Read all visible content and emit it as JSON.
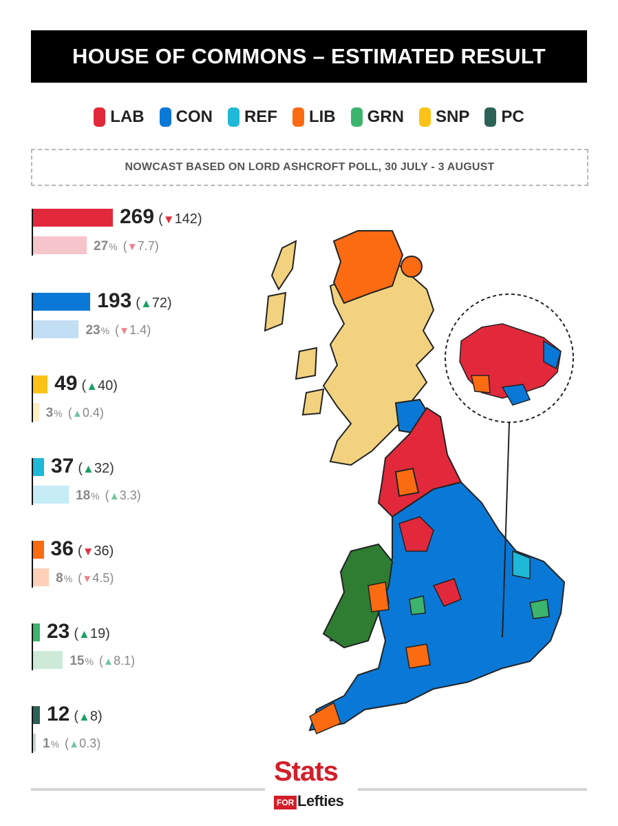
{
  "header": {
    "title": "HOUSE OF COMMONS – ESTIMATED RESULT"
  },
  "legend": [
    {
      "label": "LAB",
      "color": "#e1293b"
    },
    {
      "label": "CON",
      "color": "#0a78d6"
    },
    {
      "label": "REF",
      "color": "#1fb8d7"
    },
    {
      "label": "LIB",
      "color": "#fb6b12"
    },
    {
      "label": "GRN",
      "color": "#3cb46e"
    },
    {
      "label": "SNP",
      "color": "#fcc217"
    },
    {
      "label": "PC",
      "color": "#2c6156"
    }
  ],
  "subtitle": "NOWCAST BASED ON LORD ASHCROFT POLL, 30 JULY - 3 AUGUST",
  "chart_data": {
    "type": "bar",
    "categories": [
      "LAB",
      "CON",
      "SNP",
      "REF",
      "LIB",
      "GRN",
      "PC"
    ],
    "series": [
      {
        "name": "Seats",
        "values": [
          269,
          193,
          49,
          37,
          36,
          23,
          12
        ],
        "change_direction": [
          "down",
          "up",
          "up",
          "up",
          "down",
          "up",
          "up"
        ],
        "change_labels": [
          "142",
          "72",
          "40",
          "32",
          "36",
          "19",
          "8"
        ]
      },
      {
        "name": "Vote share",
        "values": [
          27,
          23,
          3,
          18,
          8,
          15,
          1
        ],
        "change_direction": [
          "down",
          "down",
          "up",
          "up",
          "down",
          "up",
          "up"
        ],
        "change_labels": [
          "7.7",
          "1.4",
          "0.4",
          "3.3",
          "4.5",
          "8.1",
          "0.3"
        ]
      }
    ],
    "bar_colors": [
      "#e1293b",
      "#0a78d6",
      "#fcc217",
      "#1fb8d7",
      "#fb6b12",
      "#3cb46e",
      "#2c6156"
    ],
    "vote_bar_colors": [
      "#f6c5cc",
      "#c2def5",
      "#fdefc4",
      "#c6ecf5",
      "#fed0b8",
      "#cde9d8",
      "#c6d5d2"
    ],
    "percent_suffix": "%"
  },
  "map": {
    "area": "Great Britain constituency map",
    "inset": "London"
  },
  "footer": {
    "logo_main": "Stats",
    "logo_for": "FOR",
    "logo_sub": "Lefties"
  }
}
